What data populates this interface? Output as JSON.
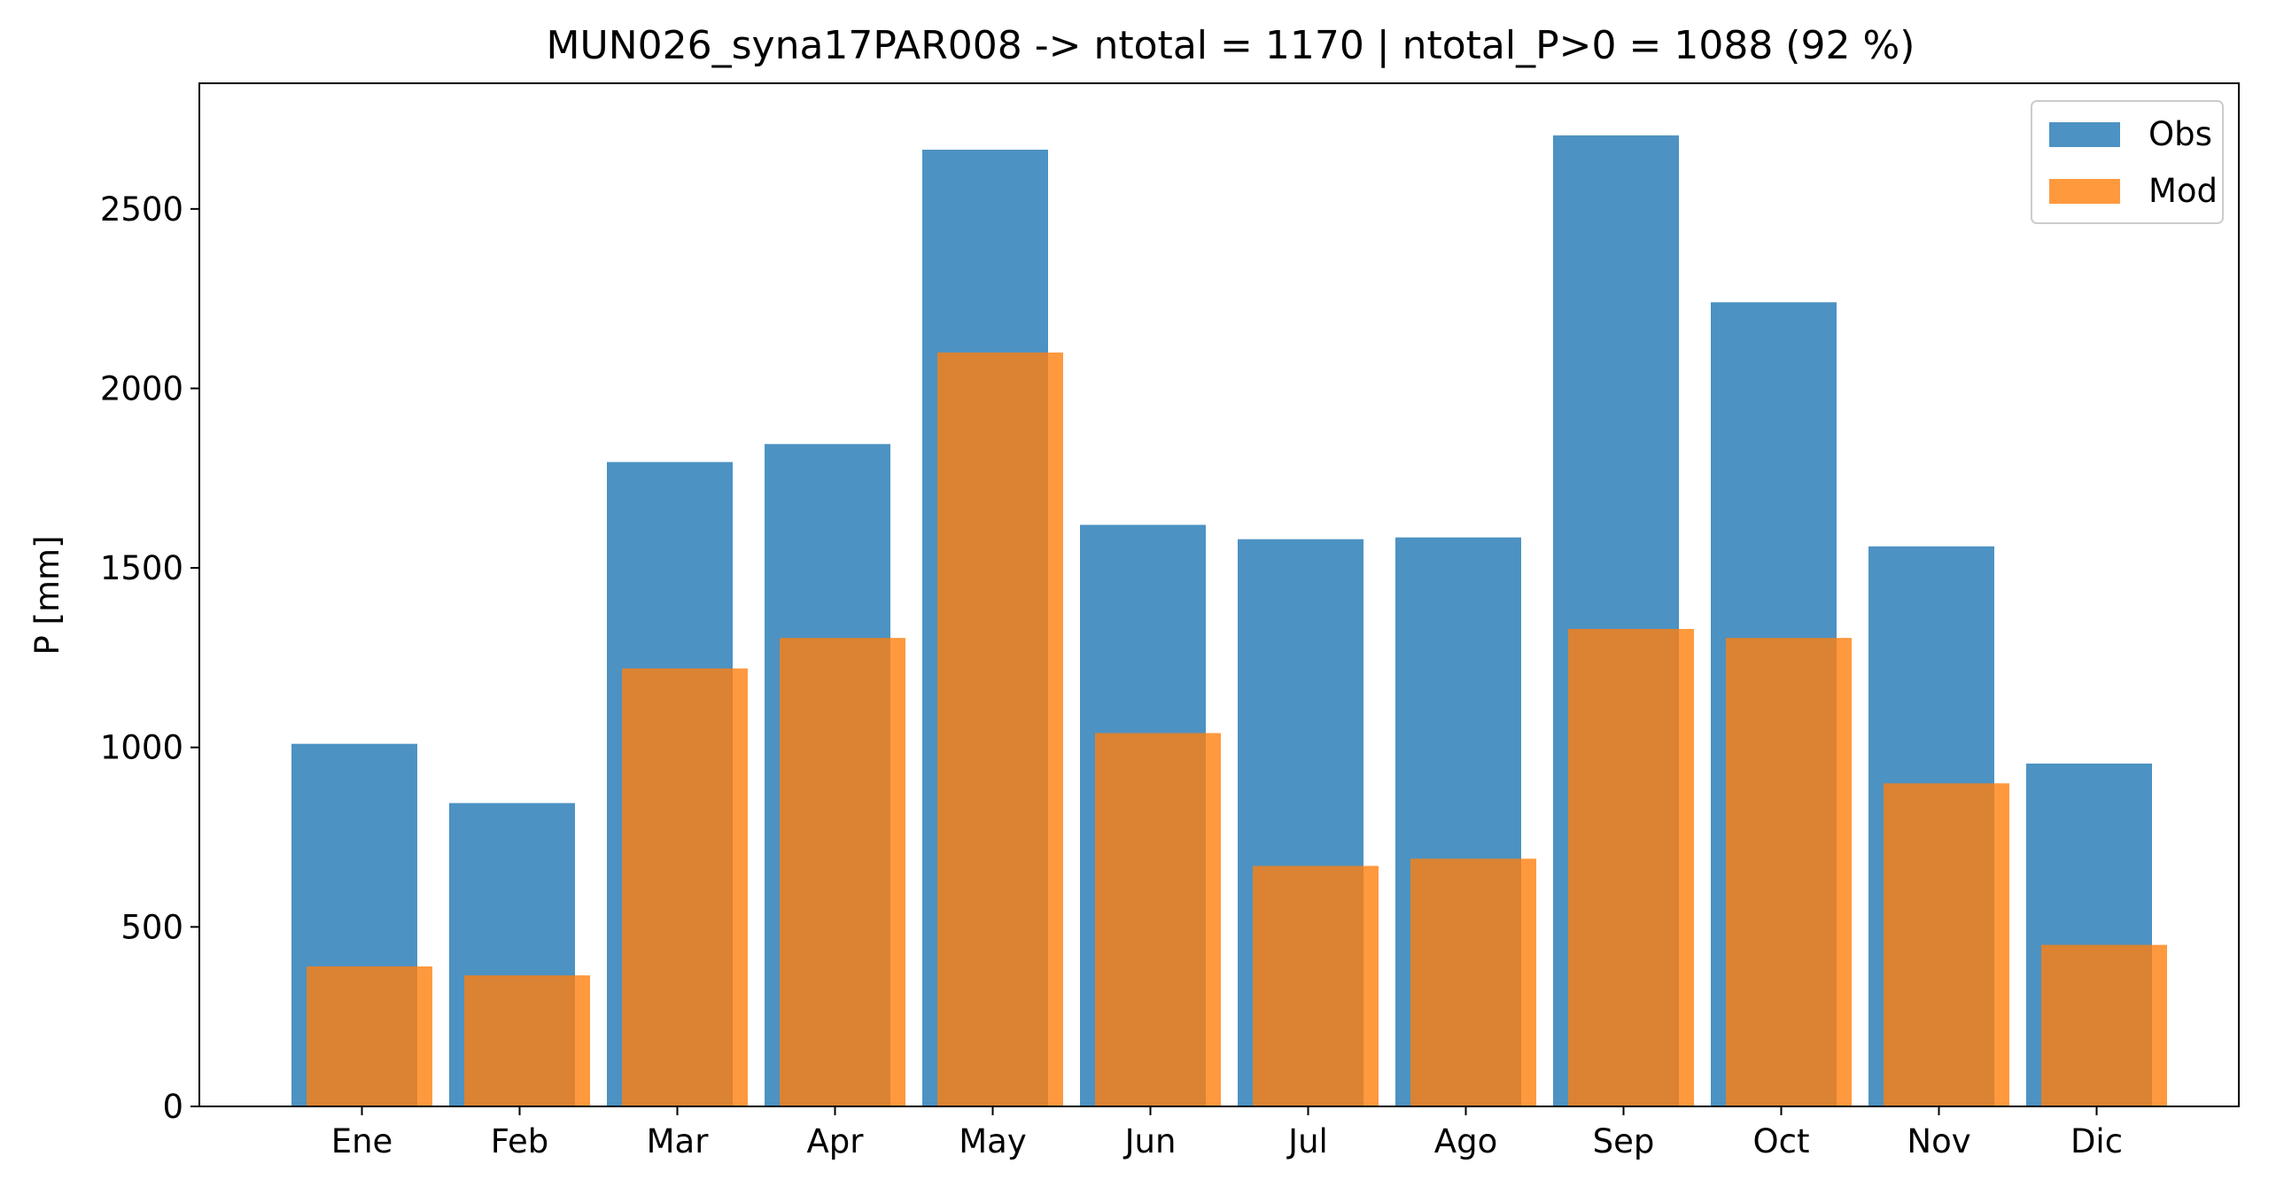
{
  "chart_data": {
    "type": "bar",
    "title": "MUN026_syna17PAR008 -> ntotal = 1170 | ntotal_P>0 = 1088 (92 %)",
    "xlabel": "",
    "ylabel": "P [mm]",
    "categories": [
      "Ene",
      "Feb",
      "Mar",
      "Apr",
      "May",
      "Jun",
      "Jul",
      "Ago",
      "Sep",
      "Oct",
      "Nov",
      "Dic"
    ],
    "series": [
      {
        "name": "Obs",
        "color": "#1f77b4",
        "opacity": 0.8,
        "values": [
          1010,
          845,
          1795,
          1845,
          2665,
          1620,
          1580,
          1585,
          2705,
          2240,
          1560,
          955
        ]
      },
      {
        "name": "Mod",
        "color": "#ff7f0e",
        "opacity": 0.8,
        "values": [
          390,
          365,
          1220,
          1305,
          2100,
          1040,
          670,
          690,
          1330,
          1305,
          900,
          450
        ]
      }
    ],
    "ylim": [
      0,
      2850
    ],
    "yticks": [
      0,
      500,
      1000,
      1500,
      2000,
      2500
    ],
    "legend": "upper right",
    "grid": false
  }
}
